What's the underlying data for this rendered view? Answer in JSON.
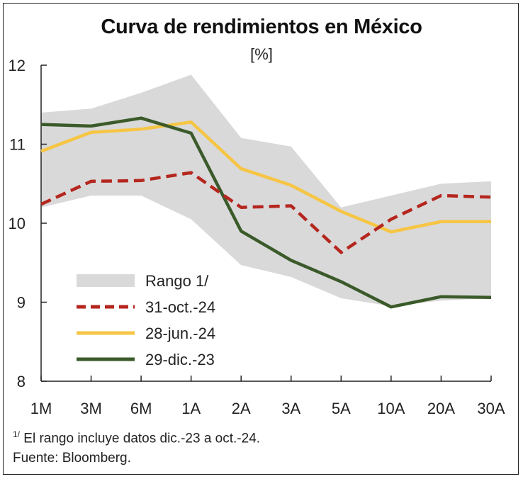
{
  "chart_data": {
    "type": "line",
    "title": "Curva de rendimientos en México",
    "subtitle": "[%]",
    "categories": [
      "1M",
      "3M",
      "6M",
      "1A",
      "2A",
      "3A",
      "5A",
      "10A",
      "20A",
      "30A"
    ],
    "ylim": [
      8,
      12
    ],
    "yticks": [
      "8",
      "9",
      "10",
      "11",
      "12"
    ],
    "grid": false,
    "legend_position": "bottom-left",
    "range": {
      "name": "Rango 1/",
      "color": "#d9d9d9",
      "upper": [
        11.4,
        11.45,
        11.65,
        11.88,
        11.08,
        10.97,
        10.2,
        10.35,
        10.5,
        10.53
      ],
      "lower": [
        10.2,
        10.35,
        10.35,
        10.05,
        9.47,
        9.32,
        9.05,
        8.95,
        9.02,
        9.05
      ]
    },
    "series": [
      {
        "name": "31-oct.-24",
        "color": "#b5261e",
        "style": "dashed",
        "values": [
          10.24,
          10.53,
          10.54,
          10.64,
          10.2,
          10.22,
          9.63,
          10.05,
          10.35,
          10.33
        ]
      },
      {
        "name": "28-jun.-24",
        "color": "#f6c544",
        "style": "solid",
        "values": [
          10.91,
          11.15,
          11.19,
          11.28,
          10.69,
          10.48,
          10.15,
          9.89,
          10.02,
          10.02
        ]
      },
      {
        "name": "29-dic.-23",
        "color": "#3b5a2a",
        "style": "solid",
        "values": [
          11.25,
          11.23,
          11.33,
          11.14,
          9.9,
          9.53,
          9.26,
          8.94,
          9.07,
          9.06
        ]
      }
    ]
  },
  "footnotes": {
    "note_marker": "1/",
    "note_text": " El rango incluye datos dic.-23 a oct.-24.",
    "source": "Fuente: Bloomberg."
  }
}
